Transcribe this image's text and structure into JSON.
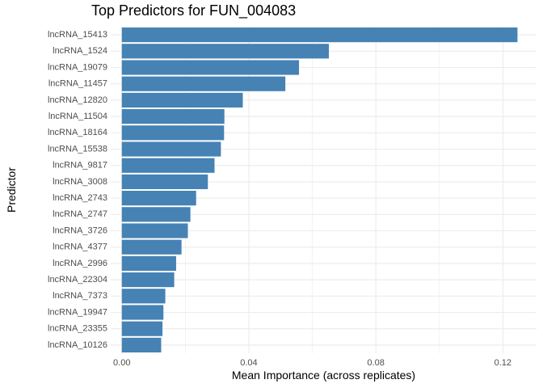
{
  "chart_data": {
    "type": "bar",
    "orientation": "horizontal",
    "title": "Top Predictors for FUN_004083",
    "xlabel": "Mean Importance (across replicates)",
    "ylabel": "Predictor",
    "categories": [
      "lncRNA_15413",
      "lncRNA_1524",
      "lncRNA_19079",
      "lncRNA_11457",
      "lncRNA_12820",
      "lncRNA_11504",
      "lncRNA_18164",
      "lncRNA_15538",
      "lncRNA_9817",
      "lncRNA_3008",
      "lncRNA_2743",
      "lncRNA_2747",
      "lncRNA_3726",
      "lncRNA_4377",
      "lncRNA_2996",
      "lncRNA_22304",
      "lncRNA_7373",
      "lncRNA_19947",
      "lncRNA_23355",
      "lncRNA_10126"
    ],
    "values": [
      0.1246,
      0.0652,
      0.0558,
      0.0515,
      0.0381,
      0.0323,
      0.0322,
      0.0312,
      0.0292,
      0.0271,
      0.0234,
      0.0216,
      0.0208,
      0.0188,
      0.0171,
      0.0165,
      0.0137,
      0.0131,
      0.0128,
      0.0124
    ],
    "xlim": [
      -0.0035,
      0.1306
    ],
    "xticks": [
      0.0,
      0.04,
      0.08,
      0.12
    ],
    "xtick_labels": [
      "0.00",
      "0.04",
      "0.08",
      "0.12"
    ],
    "grid": true,
    "bar_color": "#4682b4",
    "grid_color": "#ebebeb"
  }
}
